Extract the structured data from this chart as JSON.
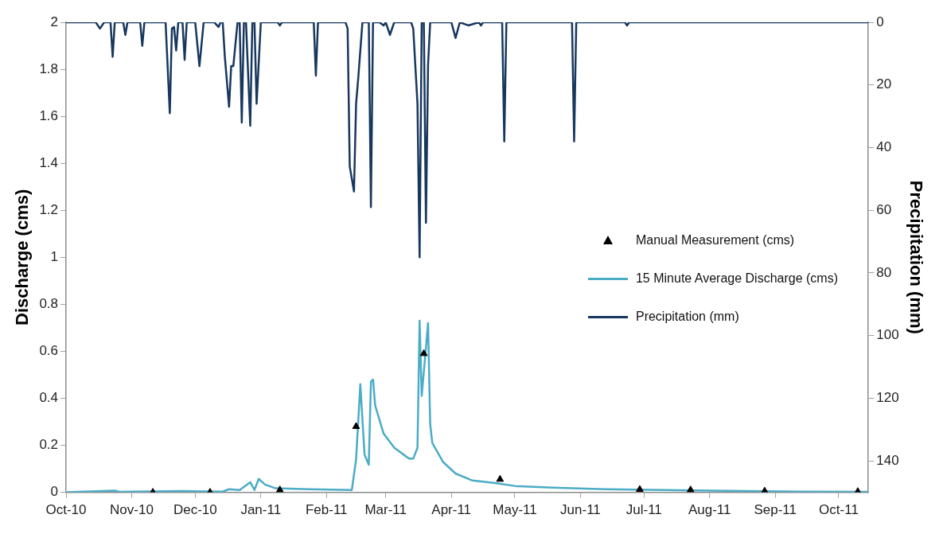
{
  "chart_data": {
    "type": "line",
    "ylabel": "Discharge (cms)",
    "y2label": "Precipitation (mm)",
    "xlim": [
      "2010-10-01",
      "2011-10-15"
    ],
    "xticks": [
      {
        "value": "2010-10-01",
        "label": "Oct-10"
      },
      {
        "value": "2010-11-01",
        "label": "Nov-10"
      },
      {
        "value": "2010-12-01",
        "label": "Dec-10"
      },
      {
        "value": "2011-01-01",
        "label": "Jan-11"
      },
      {
        "value": "2011-02-01",
        "label": "Feb-11"
      },
      {
        "value": "2011-03-01",
        "label": "Mar-11"
      },
      {
        "value": "2011-04-01",
        "label": "Apr-11"
      },
      {
        "value": "2011-05-01",
        "label": "May-11"
      },
      {
        "value": "2011-06-01",
        "label": "Jun-11"
      },
      {
        "value": "2011-07-01",
        "label": "Jul-11"
      },
      {
        "value": "2011-08-01",
        "label": "Aug-11"
      },
      {
        "value": "2011-09-01",
        "label": "Sep-11"
      },
      {
        "value": "2011-10-01",
        "label": "Oct-11"
      }
    ],
    "ylim": [
      0,
      2
    ],
    "yticks": [
      0,
      0.2,
      0.4,
      0.6,
      0.8,
      1,
      1.2,
      1.4,
      1.6,
      1.8,
      2
    ],
    "y2lim": [
      150,
      0
    ],
    "y2ticks": [
      0,
      20,
      40,
      60,
      80,
      100,
      120,
      140
    ],
    "grid": false,
    "legend": "right",
    "series": [
      {
        "name": "Manual Measurement (cms)",
        "type": "scatter",
        "marker": "triangle",
        "color": "#000000",
        "x": [
          "2010-11-11",
          "2010-12-08",
          "2011-01-10",
          "2011-02-15",
          "2011-03-19",
          "2011-04-24",
          "2011-06-29",
          "2011-07-23",
          "2011-08-27",
          "2011-10-10"
        ],
        "values": [
          0,
          0,
          0.01,
          0.28,
          0.59,
          0.055,
          0.012,
          0.01,
          0.005,
          0.003
        ]
      },
      {
        "name": "15 Minute Average Discharge (cms)",
        "type": "line",
        "color": "#4bacc6",
        "x": [
          "2010-10-01",
          "2010-10-24",
          "2010-10-26",
          "2010-11-25",
          "2010-12-14",
          "2010-12-17",
          "2010-12-22",
          "2010-12-27",
          "2010-12-29",
          "2010-12-31",
          "2011-01-03",
          "2011-01-08",
          "2011-01-24",
          "2011-02-13",
          "2011-02-15",
          "2011-02-17",
          "2011-02-19",
          "2011-02-21",
          "2011-02-22",
          "2011-02-23",
          "2011-02-24",
          "2011-02-28",
          "2011-03-05",
          "2011-03-12",
          "2011-03-14",
          "2011-03-16",
          "2011-03-17",
          "2011-03-18",
          "2011-03-21",
          "2011-03-22",
          "2011-03-23",
          "2011-03-28",
          "2011-04-03",
          "2011-04-11",
          "2011-04-21",
          "2011-05-01",
          "2011-05-19",
          "2011-06-13",
          "2011-08-01",
          "2011-09-12",
          "2011-10-15"
        ],
        "values": [
          0,
          0.007,
          0.002,
          0.005,
          0.003,
          0.013,
          0.01,
          0.043,
          0.01,
          0.057,
          0.033,
          0.017,
          0.013,
          0.01,
          0.14,
          0.46,
          0.16,
          0.117,
          0.47,
          0.48,
          0.37,
          0.25,
          0.19,
          0.143,
          0.143,
          0.19,
          0.73,
          0.41,
          0.72,
          0.29,
          0.21,
          0.13,
          0.08,
          0.05,
          0.04,
          0.027,
          0.02,
          0.013,
          0.007,
          0.003,
          0.002
        ]
      },
      {
        "name": "Precipitation (mm)",
        "type": "line",
        "axis": "y2",
        "color": "#17375e",
        "x": [
          "2010-10-01",
          "2010-10-15",
          "2010-10-17",
          "2010-10-19",
          "2010-10-22",
          "2010-10-23",
          "2010-10-24",
          "2010-10-28",
          "2010-10-29",
          "2010-10-30",
          "2010-11-05",
          "2010-11-06",
          "2010-11-07",
          "2010-11-17",
          "2010-11-19",
          "2010-11-20",
          "2010-11-21",
          "2010-11-22",
          "2010-11-23",
          "2010-11-25",
          "2010-11-26",
          "2010-11-27",
          "2010-12-01",
          "2010-12-03",
          "2010-12-05",
          "2010-12-10",
          "2010-12-12",
          "2010-12-13",
          "2010-12-14",
          "2010-12-15",
          "2010-12-17",
          "2010-12-18",
          "2010-12-19",
          "2010-12-21",
          "2010-12-22",
          "2010-12-23",
          "2010-12-24",
          "2010-12-25",
          "2010-12-27",
          "2010-12-28",
          "2010-12-29",
          "2010-12-30",
          "2011-01-01",
          "2011-01-09",
          "2011-01-10",
          "2011-01-11",
          "2011-01-26",
          "2011-01-27",
          "2011-01-28",
          "2011-02-10",
          "2011-02-11",
          "2011-02-12",
          "2011-02-14",
          "2011-02-15",
          "2011-02-16",
          "2011-02-18",
          "2011-02-19",
          "2011-02-21",
          "2011-02-22",
          "2011-02-23",
          "2011-02-26",
          "2011-02-28",
          "2011-03-01",
          "2011-03-03",
          "2011-03-05",
          "2011-03-13",
          "2011-03-14",
          "2011-03-16",
          "2011-03-17",
          "2011-03-18",
          "2011-03-19",
          "2011-03-20",
          "2011-03-21",
          "2011-03-22",
          "2011-04-01",
          "2011-04-03",
          "2011-04-05",
          "2011-04-09",
          "2011-04-14",
          "2011-04-15",
          "2011-04-16",
          "2011-04-25",
          "2011-04-26",
          "2011-04-27",
          "2011-05-28",
          "2011-05-29",
          "2011-05-30",
          "2011-06-22",
          "2011-06-23",
          "2011-06-24",
          "2011-10-15"
        ],
        "values": [
          0,
          0,
          2,
          0,
          0,
          11,
          0,
          0,
          4,
          0,
          0,
          7.5,
          0,
          0,
          29,
          2,
          1.5,
          9,
          0,
          0,
          12,
          0,
          0,
          14,
          0,
          0,
          1.5,
          0,
          0,
          11,
          27,
          14,
          14,
          0,
          0,
          32,
          0,
          0,
          33,
          0,
          0,
          26,
          0,
          0,
          1,
          0,
          0,
          17,
          0,
          0,
          2,
          46,
          54,
          26,
          18,
          0,
          0,
          0,
          59,
          0,
          0,
          1,
          0,
          4,
          0,
          0,
          2,
          26,
          75,
          0,
          0,
          64,
          13.5,
          0,
          0,
          5,
          0,
          1,
          0,
          1,
          0,
          0,
          38,
          0,
          0,
          38,
          0,
          0,
          1,
          0,
          0
        ]
      }
    ]
  }
}
